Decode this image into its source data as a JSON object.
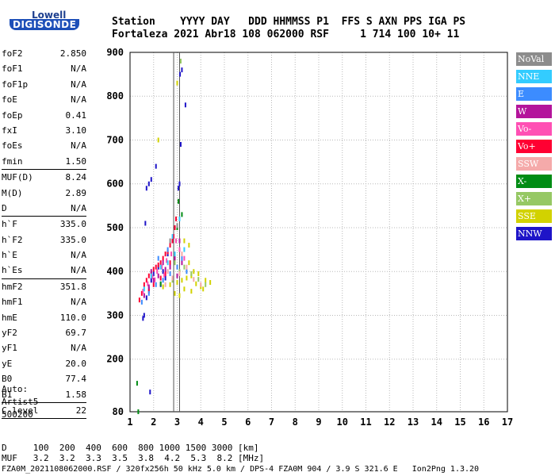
{
  "logo": {
    "brand": "Lowell",
    "product": "DIGISONDE"
  },
  "header": {
    "line1": "Station    YYYY DAY   DDD HHMMSS P1  FFS S AXN PPS IGA PS",
    "line2": "Fortaleza 2021 Abr18 108 062000 RSF     1 714 100 10+ 11"
  },
  "params": [
    {
      "name": "foF2",
      "value": "2.850"
    },
    {
      "name": "foF1",
      "value": "N/A"
    },
    {
      "name": "foF1p",
      "value": "N/A"
    },
    {
      "name": "foE",
      "value": "N/A"
    },
    {
      "name": "foEp",
      "value": "0.41"
    },
    {
      "name": "fxI",
      "value": "3.10"
    },
    {
      "name": "foEs",
      "value": "N/A"
    },
    {
      "name": "fmin",
      "value": "1.50",
      "ruled": true
    },
    {
      "name": "MUF(D)",
      "value": "8.24"
    },
    {
      "name": "M(D)",
      "value": "2.89"
    },
    {
      "name": "D",
      "value": "N/A",
      "ruled": true
    },
    {
      "name": "h`F",
      "value": "335.0"
    },
    {
      "name": "h`F2",
      "value": "335.0"
    },
    {
      "name": "h`E",
      "value": "N/A"
    },
    {
      "name": "h`Es",
      "value": "N/A",
      "ruled": true
    },
    {
      "name": "hmF2",
      "value": "351.8"
    },
    {
      "name": "hmF1",
      "value": "N/A"
    },
    {
      "name": "hmE",
      "value": "110.0"
    },
    {
      "name": "yF2",
      "value": "69.7"
    },
    {
      "name": "yF1",
      "value": "N/A"
    },
    {
      "name": "yE",
      "value": "20.0"
    },
    {
      "name": "B0",
      "value": "77.4"
    },
    {
      "name": "B1",
      "value": "1.58",
      "ruled": true
    },
    {
      "name": "C-level",
      "value": "22",
      "ruled": true
    }
  ],
  "autoscale": {
    "line1": "Auto:",
    "line2": "Artist5",
    "line3": "500200"
  },
  "footer": {
    "d_line": "D     100  200  400  600  800 1000 1500 3000 [km]",
    "muf_line": "MUF   3.2  3.2  3.3  3.5  3.8  4.2  5.3  8.2 [MHz]",
    "file_line": "FZA0M_2021108062000.RSF / 320fx256h 50 kHz 5.0 km / DPS-4 FZA0M 904 / 3.9 S 321.6 E   Ion2Png 1.3.20"
  },
  "legend": [
    {
      "label": "NoVal",
      "color": "#8c8c8c"
    },
    {
      "label": "NNE",
      "color": "#33ccff"
    },
    {
      "label": "E",
      "color": "#3c8cff"
    },
    {
      "label": "W",
      "color": "#b4149b"
    },
    {
      "label": "Vo-",
      "color": "#ff50b4"
    },
    {
      "label": "Vo+",
      "color": "#ff0032"
    },
    {
      "label": "SSW",
      "color": "#f5aaaa"
    },
    {
      "label": "X-",
      "color": "#008c14"
    },
    {
      "label": "X+",
      "color": "#96c864"
    },
    {
      "label": "SSE",
      "color": "#d2d200"
    },
    {
      "label": "NNW",
      "color": "#1e14c8"
    }
  ],
  "chart_data": {
    "type": "scatter",
    "title": "",
    "xlabel": "",
    "ylabel": "",
    "xlim": [
      1,
      17
    ],
    "ylim": [
      80,
      900
    ],
    "xticks": [
      "1",
      "2",
      "3",
      "4",
      "5",
      "6",
      "7",
      "8",
      "9",
      "10",
      "11",
      "12",
      "13",
      "14",
      "15",
      "16",
      "17"
    ],
    "yticks": [
      "80",
      "200",
      "300",
      "400",
      "500",
      "600",
      "700",
      "800",
      "900"
    ],
    "grid": true,
    "markers": [
      {
        "x": 2.85
      },
      {
        "x": 3.1
      }
    ],
    "series": [
      {
        "legend": "NNW",
        "points": [
          [
            1.55,
            293
          ],
          [
            1.6,
            300
          ],
          [
            1.7,
            340
          ],
          [
            1.8,
            360
          ],
          [
            1.9,
            380
          ],
          [
            2.0,
            395
          ],
          [
            2.2,
            410
          ],
          [
            2.4,
            400
          ],
          [
            2.6,
            440
          ],
          [
            2.8,
            470
          ],
          [
            3.05,
            590
          ],
          [
            3.1,
            600
          ],
          [
            3.15,
            690
          ],
          [
            3.12,
            850
          ],
          [
            3.2,
            860
          ],
          [
            1.7,
            590
          ],
          [
            1.8,
            600
          ],
          [
            1.9,
            610
          ],
          [
            2.1,
            640
          ],
          [
            3.35,
            780
          ],
          [
            1.85,
            125
          ],
          [
            2.3,
            370
          ],
          [
            2.5,
            385
          ],
          [
            1.65,
            510
          ]
        ]
      },
      {
        "legend": "Vo+",
        "points": [
          [
            1.4,
            335
          ],
          [
            1.5,
            350
          ],
          [
            1.6,
            370
          ],
          [
            1.7,
            380
          ],
          [
            1.8,
            390
          ],
          [
            1.9,
            395
          ],
          [
            2.0,
            405
          ],
          [
            2.1,
            410
          ],
          [
            2.2,
            415
          ],
          [
            2.3,
            420
          ],
          [
            2.4,
            430
          ],
          [
            2.5,
            440
          ],
          [
            2.6,
            445
          ],
          [
            2.7,
            460
          ],
          [
            2.8,
            470
          ],
          [
            2.85,
            480
          ],
          [
            2.9,
            500
          ],
          [
            2.7,
            420
          ],
          [
            2.5,
            395
          ],
          [
            2.3,
            385
          ],
          [
            2.0,
            370
          ],
          [
            1.8,
            355
          ],
          [
            2.95,
            520
          ]
        ]
      },
      {
        "legend": "Vo-",
        "points": [
          [
            1.55,
            355
          ],
          [
            1.75,
            372
          ],
          [
            1.95,
            388
          ],
          [
            2.15,
            400
          ],
          [
            2.35,
            410
          ],
          [
            2.55,
            425
          ],
          [
            2.75,
            440
          ],
          [
            2.95,
            470
          ],
          [
            3.0,
            500
          ],
          [
            2.45,
            392
          ],
          [
            2.05,
            381
          ],
          [
            3.1,
            450
          ],
          [
            3.3,
            430
          ]
        ]
      },
      {
        "legend": "W",
        "points": [
          [
            1.6,
            345
          ],
          [
            1.8,
            365
          ],
          [
            2.0,
            380
          ],
          [
            2.2,
            390
          ],
          [
            2.5,
            405
          ],
          [
            2.7,
            410
          ],
          [
            2.9,
            430
          ],
          [
            3.1,
            470
          ],
          [
            3.2,
            420
          ],
          [
            3.0,
            390
          ],
          [
            2.4,
            420
          ],
          [
            1.9,
            400
          ]
        ]
      },
      {
        "legend": "E",
        "points": [
          [
            1.5,
            330
          ],
          [
            1.8,
            350
          ],
          [
            2.1,
            370
          ],
          [
            2.4,
            380
          ],
          [
            2.7,
            395
          ],
          [
            3.0,
            410
          ],
          [
            3.2,
            430
          ],
          [
            2.6,
            450
          ],
          [
            2.2,
            430
          ],
          [
            3.4,
            400
          ]
        ]
      },
      {
        "legend": "NNE",
        "points": [
          [
            1.6,
            360
          ],
          [
            1.9,
            390
          ],
          [
            2.3,
            410
          ],
          [
            2.6,
            420
          ],
          [
            2.9,
            440
          ],
          [
            3.3,
            450
          ],
          [
            2.8,
            480
          ],
          [
            3.1,
            520
          ]
        ]
      },
      {
        "legend": "SSE",
        "points": [
          [
            2.4,
            365
          ],
          [
            2.7,
            370
          ],
          [
            3.0,
            375
          ],
          [
            3.2,
            380
          ],
          [
            3.4,
            385
          ],
          [
            3.6,
            390
          ],
          [
            3.8,
            372
          ],
          [
            4.0,
            365
          ],
          [
            4.2,
            380
          ],
          [
            4.4,
            375
          ],
          [
            3.5,
            420
          ],
          [
            3.7,
            400
          ],
          [
            3.9,
            395
          ],
          [
            3.3,
            360
          ],
          [
            3.6,
            355
          ],
          [
            2.9,
            350
          ],
          [
            3.1,
            345
          ],
          [
            4.1,
            360
          ],
          [
            3.0,
            830
          ],
          [
            2.2,
            700
          ],
          [
            3.5,
            460
          ],
          [
            3.3,
            470
          ]
        ]
      },
      {
        "legend": "X+",
        "points": [
          [
            2.8,
            380
          ],
          [
            3.1,
            400
          ],
          [
            3.3,
            410
          ],
          [
            3.6,
            395
          ],
          [
            3.9,
            382
          ],
          [
            4.2,
            370
          ],
          [
            2.9,
            420
          ],
          [
            3.15,
            880
          ]
        ]
      },
      {
        "legend": "X-",
        "points": [
          [
            1.3,
            145
          ],
          [
            1.35,
            80
          ],
          [
            3.0,
            500
          ],
          [
            3.2,
            530
          ],
          [
            2.3,
            372
          ],
          [
            3.05,
            560
          ]
        ]
      },
      {
        "legend": "SSW",
        "points": [
          [
            2.5,
            370
          ],
          [
            2.8,
            385
          ],
          [
            3.1,
            395
          ],
          [
            3.4,
            410
          ],
          [
            3.7,
            382
          ],
          [
            4.0,
            370
          ],
          [
            3.2,
            440
          ],
          [
            2.6,
            400
          ]
        ]
      },
      {
        "legend": "NoVal",
        "points": [
          [
            3.0,
            505
          ],
          [
            2.7,
            470
          ]
        ]
      }
    ]
  }
}
